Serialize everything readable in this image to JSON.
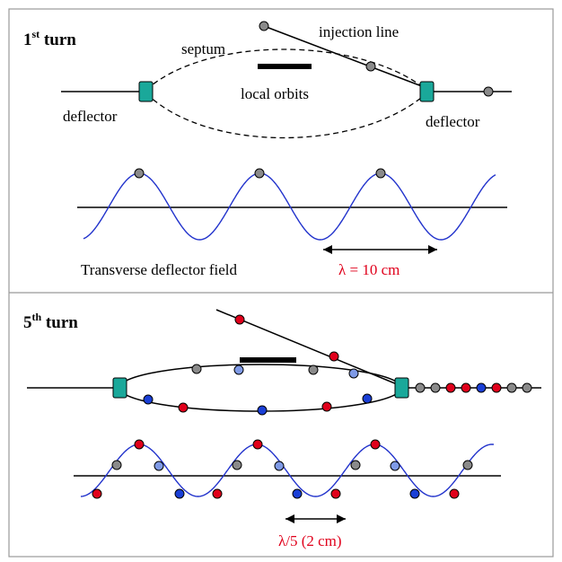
{
  "panel1": {
    "title_num": "1",
    "title_sup": "st",
    "title_rest": " turn",
    "septum": "septum",
    "injection": "injection  line",
    "local_orbits": "local orbits",
    "deflector_left": "deflector",
    "deflector_right": "deflector",
    "field": "Transverse deflector field",
    "lambda": "λ = 10 cm"
  },
  "panel2": {
    "title_num": "5",
    "title_sup": "th",
    "title_rest": " turn",
    "lambda": "λ/5 (2 cm)"
  },
  "colors": {
    "grey": "#8a8a8a",
    "red": "#e0001b",
    "blue": "#1a3fd6",
    "lightblue": "#7f9ae6",
    "teal": "#1aa89a",
    "wave": "#2233cc",
    "label_red": "#e0001b"
  }
}
